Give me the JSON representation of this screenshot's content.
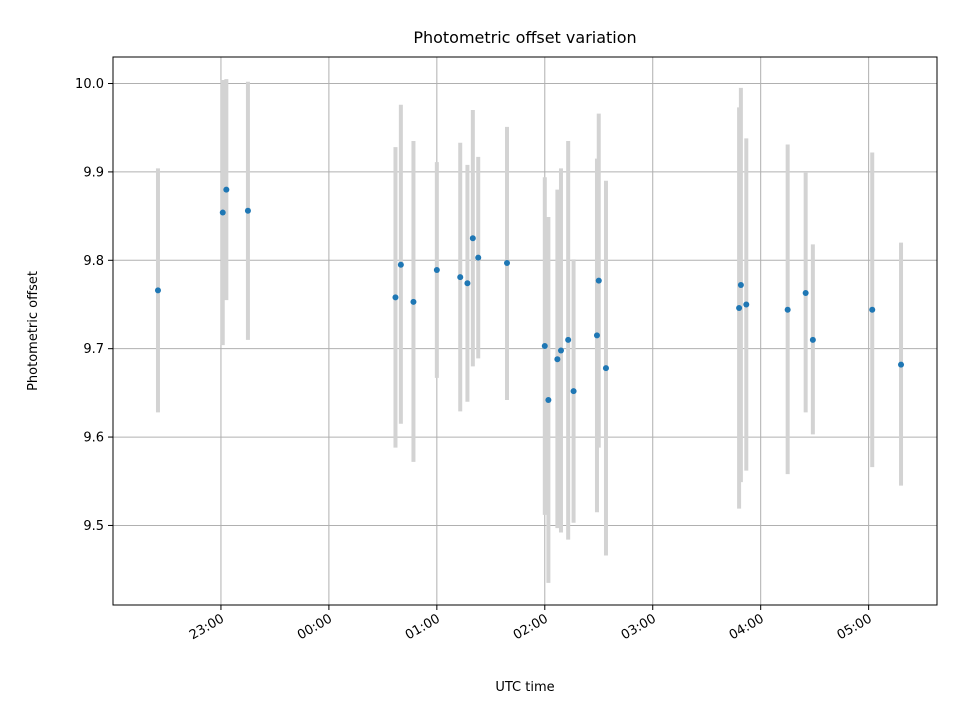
{
  "chart_data": {
    "type": "scatter",
    "title": "Photometric offset variation",
    "xlabel": "UTC time",
    "ylabel": "Photometric offset",
    "x_unit": "UTC time (HH:MM), 22:00 on the first night through 05:00 the next morning",
    "xlim": [
      "22:00",
      "05:38"
    ],
    "ylim": [
      9.41,
      10.03
    ],
    "x_ticks": [
      "23:00",
      "00:00",
      "01:00",
      "02:00",
      "03:00",
      "04:00",
      "05:00"
    ],
    "y_ticks": [
      "9.5",
      "9.6",
      "9.7",
      "9.8",
      "9.9",
      "10.0"
    ],
    "grid": true,
    "marker_color": "#1f77b4",
    "errorbar_color": "#d3d3d3",
    "points": [
      {
        "x": "22:25",
        "y": 9.766,
        "lo": 9.628,
        "hi": 9.904
      },
      {
        "x": "23:01",
        "y": 9.854,
        "lo": 9.704,
        "hi": 10.004
      },
      {
        "x": "23:03",
        "y": 9.88,
        "lo": 9.755,
        "hi": 10.005
      },
      {
        "x": "23:15",
        "y": 9.856,
        "lo": 9.71,
        "hi": 10.002
      },
      {
        "x": "00:37",
        "y": 9.758,
        "lo": 9.588,
        "hi": 9.928
      },
      {
        "x": "00:40",
        "y": 9.795,
        "lo": 9.615,
        "hi": 9.976
      },
      {
        "x": "00:47",
        "y": 9.753,
        "lo": 9.572,
        "hi": 9.935
      },
      {
        "x": "01:00",
        "y": 9.789,
        "lo": 9.667,
        "hi": 9.911
      },
      {
        "x": "01:13",
        "y": 9.781,
        "lo": 9.629,
        "hi": 9.933
      },
      {
        "x": "01:17",
        "y": 9.774,
        "lo": 9.64,
        "hi": 9.908
      },
      {
        "x": "01:20",
        "y": 9.825,
        "lo": 9.68,
        "hi": 9.97
      },
      {
        "x": "01:23",
        "y": 9.803,
        "lo": 9.689,
        "hi": 9.917
      },
      {
        "x": "01:39",
        "y": 9.797,
        "lo": 9.642,
        "hi": 9.951
      },
      {
        "x": "02:00",
        "y": 9.703,
        "lo": 9.512,
        "hi": 9.894
      },
      {
        "x": "02:02",
        "y": 9.642,
        "lo": 9.435,
        "hi": 9.849
      },
      {
        "x": "02:07",
        "y": 9.688,
        "lo": 9.497,
        "hi": 9.88
      },
      {
        "x": "02:09",
        "y": 9.698,
        "lo": 9.492,
        "hi": 9.904
      },
      {
        "x": "02:13",
        "y": 9.71,
        "lo": 9.484,
        "hi": 9.935
      },
      {
        "x": "02:16",
        "y": 9.652,
        "lo": 9.503,
        "hi": 9.801
      },
      {
        "x": "02:29",
        "y": 9.715,
        "lo": 9.515,
        "hi": 9.915
      },
      {
        "x": "02:30",
        "y": 9.777,
        "lo": 9.588,
        "hi": 9.966
      },
      {
        "x": "02:34",
        "y": 9.678,
        "lo": 9.466,
        "hi": 9.89
      },
      {
        "x": "03:48",
        "y": 9.746,
        "lo": 9.519,
        "hi": 9.973
      },
      {
        "x": "03:49",
        "y": 9.772,
        "lo": 9.549,
        "hi": 9.995
      },
      {
        "x": "03:52",
        "y": 9.75,
        "lo": 9.562,
        "hi": 9.938
      },
      {
        "x": "04:15",
        "y": 9.744,
        "lo": 9.558,
        "hi": 9.931
      },
      {
        "x": "04:25",
        "y": 9.763,
        "lo": 9.628,
        "hi": 9.899
      },
      {
        "x": "04:29",
        "y": 9.71,
        "lo": 9.603,
        "hi": 9.818
      },
      {
        "x": "05:02",
        "y": 9.744,
        "lo": 9.566,
        "hi": 9.922
      },
      {
        "x": "05:18",
        "y": 9.682,
        "lo": 9.545,
        "hi": 9.82
      }
    ]
  }
}
